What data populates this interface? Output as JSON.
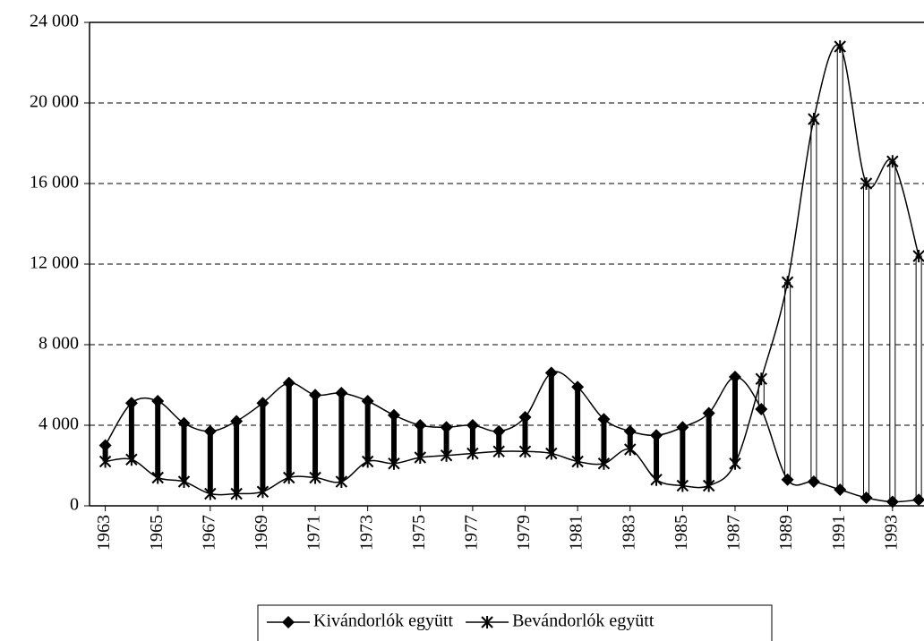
{
  "chart_data": {
    "type": "line",
    "x": [
      1963,
      1964,
      1965,
      1966,
      1967,
      1968,
      1969,
      1970,
      1971,
      1972,
      1973,
      1974,
      1975,
      1976,
      1977,
      1978,
      1979,
      1980,
      1981,
      1982,
      1983,
      1984,
      1985,
      1986,
      1987,
      1988,
      1989,
      1990,
      1991,
      1992,
      1993,
      1994
    ],
    "xlim": [
      1962.4,
      1994.2
    ],
    "xticks": [
      1963,
      1965,
      1967,
      1969,
      1971,
      1973,
      1975,
      1977,
      1979,
      1981,
      1983,
      1985,
      1987,
      1989,
      1991,
      1993
    ],
    "ylim": [
      0,
      24000
    ],
    "yticks": [
      0,
      {
        "value": 4000,
        "label": "4 000"
      },
      {
        "value": 8000,
        "label": "8 000"
      },
      {
        "value": 12000,
        "label": "12 000"
      },
      {
        "value": 16000,
        "label": "16 000"
      },
      {
        "value": 20000,
        "label": "20 000"
      },
      {
        "value": 24000,
        "label": "24 000"
      }
    ],
    "grid": true,
    "legend": "bottom",
    "series": [
      {
        "name": "Kivándorlók együtt",
        "color": "#000000",
        "marker": "diamond",
        "values": [
          3000,
          5100,
          5200,
          4100,
          3700,
          4200,
          5100,
          6100,
          5500,
          5600,
          5200,
          4500,
          4000,
          3900,
          4000,
          3700,
          4400,
          6600,
          5900,
          4300,
          3700,
          3500,
          3900,
          4600,
          6400,
          4800,
          1300,
          1200,
          800,
          400,
          200,
          300
        ]
      },
      {
        "name": "Bevándorlók együtt",
        "color": "#000000",
        "marker": "star",
        "values": [
          2200,
          2300,
          1400,
          1200,
          600,
          600,
          700,
          1400,
          1400,
          1200,
          2200,
          2100,
          2400,
          2500,
          2600,
          2700,
          2700,
          2600,
          2200,
          2100,
          2800,
          1300,
          1000,
          1000,
          2100,
          6300,
          11100,
          19200,
          22800,
          16000,
          17100,
          12400
        ]
      }
    ]
  }
}
